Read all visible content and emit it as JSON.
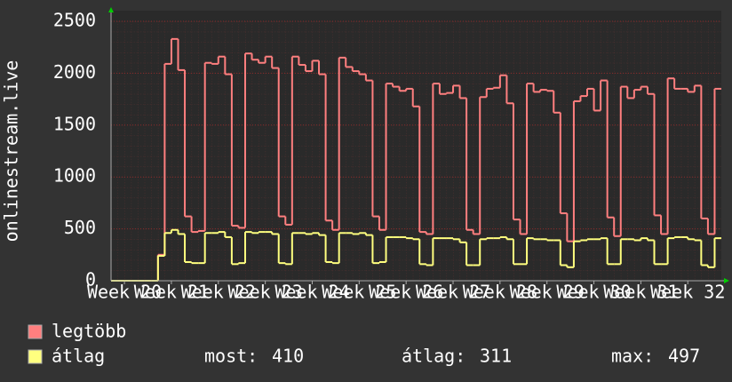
{
  "chart_data": {
    "type": "step",
    "ylabel": "onlinestream.live",
    "ylim": [
      0,
      2500
    ],
    "yticks": [
      0,
      500,
      1000,
      1500,
      2000,
      2500
    ],
    "xlim": [
      0,
      91
    ],
    "xticks": [
      {
        "value": 2,
        "label": "Week 20"
      },
      {
        "value": 9,
        "label": "Week 21"
      },
      {
        "value": 16,
        "label": "Week 22"
      },
      {
        "value": 23,
        "label": "Week 23"
      },
      {
        "value": 30,
        "label": "Week 24"
      },
      {
        "value": 37,
        "label": "Week 25"
      },
      {
        "value": 44,
        "label": "Week 26"
      },
      {
        "value": 51,
        "label": "Week 27"
      },
      {
        "value": 58,
        "label": "Week 28"
      },
      {
        "value": 65,
        "label": "Week 29"
      },
      {
        "value": 72,
        "label": "Week 30"
      },
      {
        "value": 79,
        "label": "Week 31"
      },
      {
        "value": 86,
        "label": "Week 32"
      }
    ],
    "grid": true,
    "series": [
      {
        "name": "legtöbb",
        "color": "#ff7f7f",
        "values": [
          0,
          0,
          0,
          0,
          0,
          0,
          0,
          250,
          2090,
          2330,
          2030,
          620,
          470,
          480,
          2100,
          2090,
          2160,
          1990,
          530,
          510,
          2190,
          2130,
          2100,
          2160,
          2050,
          620,
          540,
          2160,
          2080,
          2020,
          2120,
          1990,
          580,
          490,
          2150,
          2060,
          2020,
          1990,
          1930,
          620,
          490,
          1900,
          1870,
          1830,
          1850,
          1680,
          470,
          450,
          1900,
          1800,
          1810,
          1880,
          1760,
          490,
          450,
          1770,
          1850,
          1860,
          1980,
          1710,
          590,
          450,
          1900,
          1820,
          1840,
          1830,
          1620,
          650,
          380,
          1730,
          1780,
          1850,
          1640,
          1930,
          610,
          430,
          1870,
          1760,
          1840,
          1870,
          1800,
          630,
          450,
          1950,
          1850,
          1850,
          1820,
          1880,
          600,
          450,
          1850
        ]
      },
      {
        "name": "átlag",
        "color": "#ffff7f",
        "values": [
          0,
          0,
          0,
          0,
          0,
          0,
          0,
          240,
          460,
          490,
          450,
          180,
          170,
          170,
          460,
          460,
          470,
          420,
          160,
          170,
          470,
          460,
          470,
          470,
          450,
          170,
          160,
          460,
          460,
          450,
          460,
          440,
          180,
          170,
          460,
          460,
          450,
          460,
          440,
          170,
          180,
          420,
          420,
          420,
          410,
          400,
          160,
          150,
          410,
          410,
          410,
          400,
          370,
          150,
          150,
          400,
          410,
          410,
          420,
          400,
          160,
          160,
          410,
          400,
          400,
          390,
          390,
          150,
          130,
          380,
          390,
          400,
          400,
          410,
          160,
          160,
          400,
          400,
          390,
          410,
          390,
          160,
          160,
          410,
          420,
          420,
          400,
          390,
          150,
          130,
          410
        ]
      }
    ],
    "stats": [
      {
        "label": "most:",
        "value": 410
      },
      {
        "label": "átlag:",
        "value": 311
      },
      {
        "label": "max:",
        "value": 497
      }
    ]
  }
}
